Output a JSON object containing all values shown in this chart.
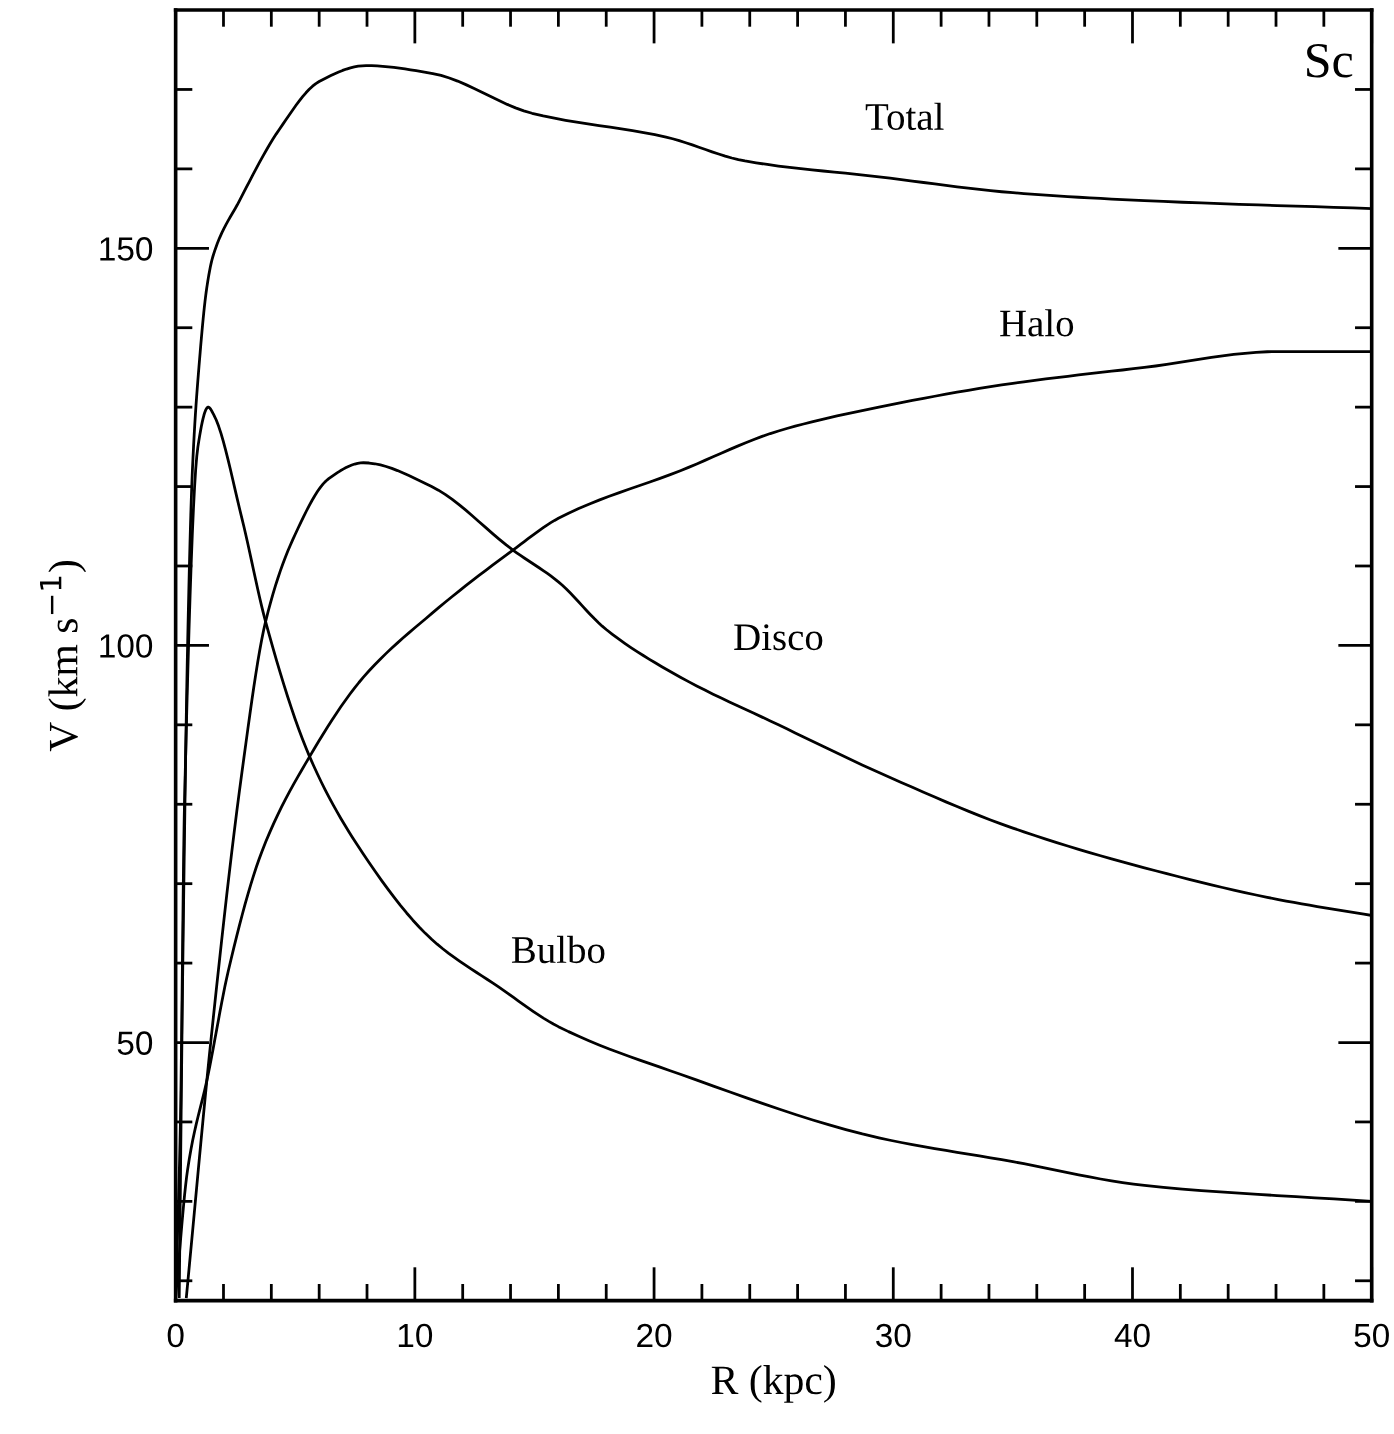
{
  "chart_data": {
    "type": "line",
    "xlabel": "R (kpc)",
    "ylabel": "V (km s$^{−1}$)",
    "annotations": [
      "Sc"
    ],
    "xlim": [
      0,
      50
    ],
    "ylim": [
      17.5,
      180
    ],
    "xticks": [
      0,
      {
        "value": 2,
        "label": null
      },
      {
        "value": 4,
        "label": null
      },
      {
        "value": 6,
        "label": null
      },
      {
        "value": 8,
        "label": null
      },
      10,
      {
        "value": 12,
        "label": null
      },
      {
        "value": 14,
        "label": null
      },
      {
        "value": 16,
        "label": null
      },
      {
        "value": 18,
        "label": null
      },
      20,
      {
        "value": 22,
        "label": null
      },
      {
        "value": 24,
        "label": null
      },
      {
        "value": 26,
        "label": null
      },
      {
        "value": 28,
        "label": null
      },
      30,
      {
        "value": 32,
        "label": null
      },
      {
        "value": 34,
        "label": null
      },
      {
        "value": 36,
        "label": null
      },
      {
        "value": 38,
        "label": null
      },
      40,
      {
        "value": 42,
        "label": null
      },
      {
        "value": 44,
        "label": null
      },
      {
        "value": 46,
        "label": null
      },
      {
        "value": 48,
        "label": null
      },
      50
    ],
    "yticks": [
      {
        "value": 20,
        "label": null
      },
      {
        "value": 30,
        "label": null
      },
      {
        "value": 40,
        "label": null
      },
      50,
      {
        "value": 60,
        "label": null
      },
      {
        "value": 70,
        "label": null
      },
      {
        "value": 80,
        "label": null
      },
      {
        "value": 90,
        "label": null
      },
      100,
      {
        "value": 110,
        "label": null
      },
      {
        "value": 120,
        "label": null
      },
      {
        "value": 130,
        "label": null
      },
      {
        "value": 140,
        "label": null
      },
      150,
      {
        "value": 160,
        "label": null
      },
      {
        "value": 170,
        "label": null
      }
    ],
    "grid": false,
    "marker": "none",
    "line_style": "solid",
    "series": [
      {
        "name": "Total",
        "color": "#000000",
        "x": [
          0.15,
          0.3,
          0.5,
          0.7,
          1.0,
          1.3,
          1.56,
          2.67,
          4.34,
          6.0,
          7.96,
          10.75,
          14.9,
          20.5,
          23.8,
          29.4,
          35,
          40.5,
          50
        ],
        "values": [
          18,
          60,
          100,
          122,
          136,
          145,
          149,
          156,
          165,
          171,
          173,
          172,
          167,
          164,
          161,
          159,
          157,
          156,
          155
        ]
      },
      {
        "name": "Halo",
        "color": "#000000",
        "x": [
          0,
          0.5,
          1.36,
          2.2,
          3.6,
          5.6,
          7.85,
          10.7,
          14.1,
          16,
          21.1,
          25.2,
          29.4,
          35,
          40.5,
          46.1,
          50
        ],
        "values": [
          18,
          34,
          46,
          59,
          74,
          86,
          96,
          104,
          112,
          116,
          122,
          127,
          130,
          133,
          135,
          137,
          137
        ]
      },
      {
        "name": "Disco",
        "color": "#000000",
        "x": [
          0.45,
          1.5,
          2.77,
          3.76,
          5.0,
          6.4,
          7.85,
          10.7,
          14.1,
          16,
          18,
          21.1,
          25.2,
          29.4,
          35,
          40.5,
          46.1,
          50
        ],
        "values": [
          18,
          51,
          84,
          103,
          114,
          121,
          123,
          120,
          112,
          108,
          102,
          96,
          90,
          84,
          77,
          72,
          68,
          66
        ]
      },
      {
        "name": "Bulbo",
        "color": "#000000",
        "x": [
          0,
          0.2,
          0.37,
          0.93,
          1.36,
          1.6,
          2.77,
          3.76,
          5.6,
          7.57,
          10.7,
          13.5,
          16,
          21.1,
          29.4,
          35,
          40.5,
          50
        ],
        "values": [
          18,
          40,
          80,
          125,
          130,
          129,
          116,
          103,
          86,
          75,
          63,
          57,
          52,
          46,
          38,
          35,
          32,
          30
        ]
      }
    ]
  }
}
